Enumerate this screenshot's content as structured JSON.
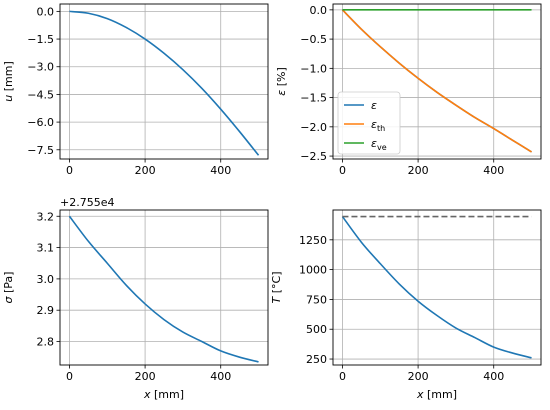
{
  "chart_data": [
    {
      "type": "line",
      "ylabel": "u [mm]",
      "xlabel": "",
      "xlim": [
        -25,
        525
      ],
      "ylim": [
        -8.0,
        0.4
      ],
      "xticks": [
        0,
        200,
        400
      ],
      "yticks": [
        0.0,
        -1.5,
        -3.0,
        -4.5,
        -6.0,
        -7.5
      ],
      "ytick_labels": [
        "0.0",
        "−1.5",
        "−3.0",
        "−4.5",
        "−6.0",
        "−7.5"
      ],
      "grid": true,
      "series": [
        {
          "color": "#1f77b4",
          "dash": false,
          "x": [
            0,
            50,
            100,
            150,
            200,
            250,
            300,
            350,
            400,
            450,
            500
          ],
          "y": [
            0,
            -0.1,
            -0.39,
            -0.87,
            -1.5,
            -2.27,
            -3.16,
            -4.17,
            -5.3,
            -6.52,
            -7.8
          ]
        }
      ]
    },
    {
      "type": "line",
      "ylabel": "ε [%]",
      "xlabel": "",
      "xlim": [
        -25,
        525
      ],
      "ylim": [
        -2.55,
        0.1
      ],
      "xticks": [
        0,
        200,
        400
      ],
      "yticks": [
        0.0,
        -0.5,
        -1.0,
        -1.5,
        -2.0,
        -2.5
      ],
      "ytick_labels": [
        "0.0",
        "−0.5",
        "−1.0",
        "−1.5",
        "−2.0",
        "−2.5"
      ],
      "grid": true,
      "legend": "lower-left",
      "series": [
        {
          "name": "ε",
          "color": "#1f77b4",
          "dash": false,
          "x": [
            0,
            50,
            100,
            150,
            200,
            250,
            300,
            350,
            400,
            450,
            500
          ],
          "y": [
            0,
            -0.33,
            -0.63,
            -0.91,
            -1.17,
            -1.41,
            -1.63,
            -1.84,
            -2.03,
            -2.23,
            -2.43
          ]
        },
        {
          "name": "ε",
          "sub": "th",
          "color": "#ff7f0e",
          "dash": false,
          "x": [
            0,
            50,
            100,
            150,
            200,
            250,
            300,
            350,
            400,
            450,
            500
          ],
          "y": [
            0,
            -0.33,
            -0.63,
            -0.91,
            -1.17,
            -1.41,
            -1.63,
            -1.84,
            -2.03,
            -2.23,
            -2.43
          ]
        },
        {
          "name": "ε",
          "sub": "ve",
          "color": "#2ca02c",
          "dash": false,
          "x": [
            0,
            500
          ],
          "y": [
            0,
            0
          ]
        }
      ]
    },
    {
      "type": "line",
      "ylabel": "σ [Pa]",
      "xlabel": "x [mm]",
      "offset_text": "+2.755e4",
      "xlim": [
        -25,
        525
      ],
      "ylim": [
        2.725,
        3.22
      ],
      "xticks": [
        0,
        200,
        400
      ],
      "yticks": [
        3.2,
        3.1,
        3.0,
        2.9,
        2.8
      ],
      "ytick_labels": [
        "3.2",
        "3.1",
        "3.0",
        "2.9",
        "2.8"
      ],
      "grid": true,
      "series": [
        {
          "color": "#1f77b4",
          "dash": false,
          "x": [
            0,
            50,
            100,
            150,
            200,
            250,
            300,
            350,
            400,
            450,
            500
          ],
          "y": [
            3.2,
            3.12,
            3.05,
            2.98,
            2.92,
            2.87,
            2.83,
            2.8,
            2.77,
            2.75,
            2.735
          ]
        }
      ]
    },
    {
      "type": "line",
      "ylabel": "T [°C]",
      "xlabel": "x [mm]",
      "xlim": [
        -25,
        525
      ],
      "ylim": [
        200,
        1500
      ],
      "xticks": [
        0,
        200,
        400
      ],
      "yticks": [
        1250,
        1000,
        750,
        500,
        250
      ],
      "ytick_labels": [
        "1250",
        "1000",
        "750",
        "500",
        "250"
      ],
      "grid": true,
      "series": [
        {
          "color": "#1f77b4",
          "dash": false,
          "x": [
            0,
            50,
            100,
            150,
            200,
            250,
            300,
            350,
            400,
            450,
            500
          ],
          "y": [
            1445,
            1230,
            1050,
            880,
            735,
            615,
            510,
            430,
            350,
            300,
            260
          ]
        },
        {
          "color": "#666666",
          "dash": true,
          "x": [
            0,
            500
          ],
          "y": [
            1445,
            1445
          ]
        }
      ]
    }
  ]
}
